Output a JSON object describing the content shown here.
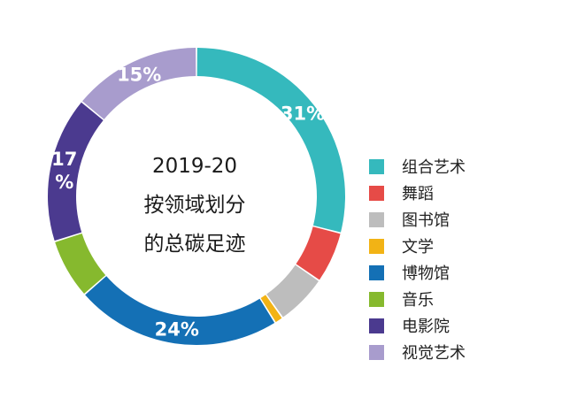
{
  "chart_data": {
    "type": "pie",
    "style": "donut",
    "title_lines": [
      "2019-20",
      "按领域划分",
      "的总碳足迹"
    ],
    "legend_position": "right",
    "slices": [
      {
        "name": "组合艺术",
        "value": 31,
        "label": "31%",
        "color": "#35b9bd"
      },
      {
        "name": "舞蹈",
        "value": 6,
        "label": "",
        "color": "#e64b47"
      },
      {
        "name": "图书馆",
        "value": 6,
        "label": "",
        "color": "#bdbdbd"
      },
      {
        "name": "文学",
        "value": 1,
        "label": "",
        "color": "#f2b315"
      },
      {
        "name": "博物馆",
        "value": 24,
        "label": "24%",
        "color": "#1470b5"
      },
      {
        "name": "音乐",
        "value": 7,
        "label": "",
        "color": "#86b92e"
      },
      {
        "name": "电影院",
        "value": 17,
        "label": "17\n%",
        "color": "#4b3a8f"
      },
      {
        "name": "视觉艺术",
        "value": 15,
        "label": "15%",
        "color": "#a89ccd"
      }
    ]
  }
}
